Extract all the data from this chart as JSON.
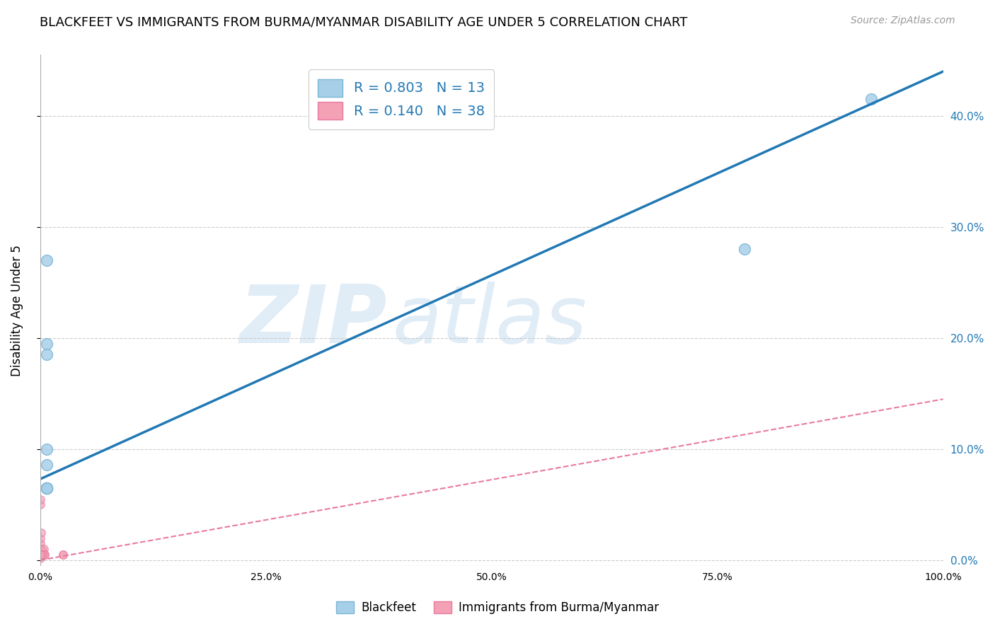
{
  "title": "BLACKFEET VS IMMIGRANTS FROM BURMA/MYANMAR DISABILITY AGE UNDER 5 CORRELATION CHART",
  "source": "Source: ZipAtlas.com",
  "ylabel": "Disability Age Under 5",
  "right_ytick_vals": [
    0.0,
    0.1,
    0.2,
    0.3,
    0.4
  ],
  "xlim": [
    0.0,
    1.0
  ],
  "ylim": [
    -0.005,
    0.455
  ],
  "blue_scatter_x": [
    0.007,
    0.007,
    0.007,
    0.007,
    0.007,
    0.007,
    0.007,
    0.92,
    0.78,
    0.007,
    0.007,
    0.007,
    0.007
  ],
  "blue_scatter_y": [
    0.086,
    0.195,
    0.185,
    0.1,
    0.065,
    0.065,
    0.065,
    0.415,
    0.28,
    0.27,
    0.065,
    0.065,
    0.065
  ],
  "pink_scatter_x": [
    0.0,
    0.0,
    0.0,
    0.001,
    0.001,
    0.002,
    0.002,
    0.003,
    0.003,
    0.004,
    0.004,
    0.0,
    0.001,
    0.001,
    0.002,
    0.0,
    0.0,
    0.001,
    0.002,
    0.002,
    0.001,
    0.0,
    0.0,
    0.0,
    0.001,
    0.001,
    0.025,
    0.025,
    0.005,
    0.0,
    0.0,
    0.0,
    0.0,
    0.005,
    0.003,
    0.0,
    0.0,
    0.0
  ],
  "pink_scatter_y": [
    0.002,
    0.01,
    0.015,
    0.005,
    0.01,
    0.005,
    0.01,
    0.005,
    0.008,
    0.005,
    0.01,
    0.02,
    0.025,
    0.005,
    0.005,
    0.005,
    0.005,
    0.005,
    0.005,
    0.005,
    0.005,
    0.05,
    0.055,
    0.005,
    0.005,
    0.005,
    0.005,
    0.005,
    0.005,
    0.005,
    0.005,
    0.005,
    0.005,
    0.005,
    0.005,
    0.005,
    0.005,
    0.005
  ],
  "blue_line_x": [
    0.0,
    1.0
  ],
  "blue_line_y": [
    0.073,
    0.44
  ],
  "pink_line_x": [
    0.0,
    1.0
  ],
  "pink_line_y": [
    0.0,
    0.145
  ],
  "blue_color": "#a8cfe8",
  "pink_color": "#f4a0b5",
  "blue_scatter_edge": "#7ab5d8",
  "pink_scatter_edge": "#e87aa0",
  "blue_line_color": "#2178b4",
  "pink_line_color": "#e87aa0",
  "R_blue": "0.803",
  "N_blue": "13",
  "R_pink": "0.140",
  "N_pink": "38",
  "grid_color": "#cccccc",
  "watermark_zip": "ZIP",
  "watermark_atlas": "atlas",
  "legend_blue_label": "Blackfeet",
  "legend_pink_label": "Immigrants from Burma/Myanmar",
  "title_fontsize": 13,
  "source_fontsize": 10,
  "marker_size_blue": 130,
  "marker_size_pink": 70,
  "xtick_vals": [
    0.0,
    0.25,
    0.5,
    0.75,
    1.0
  ],
  "xtick_labels": [
    "0.0%",
    "25.0%",
    "50.0%",
    "75.0%",
    "100.0%"
  ]
}
